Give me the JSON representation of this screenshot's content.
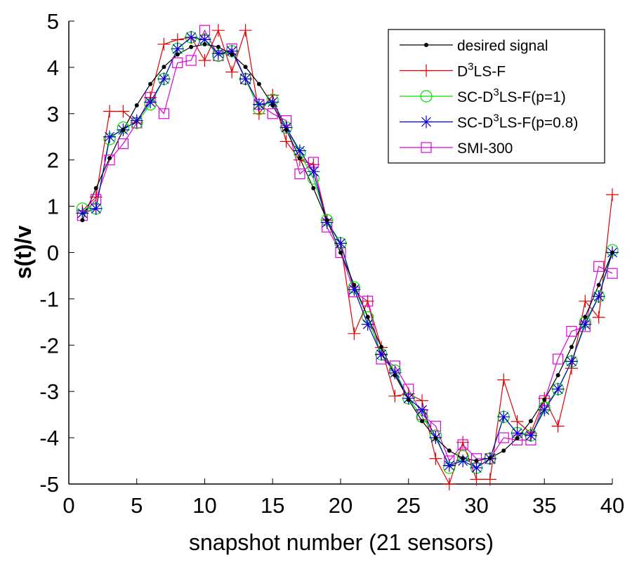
{
  "chart_data": {
    "type": "line",
    "title": "",
    "xlabel": "snapshot number (21 sensors)",
    "ylabel": "s(t)/v",
    "xlim": [
      0,
      40
    ],
    "ylim": [
      -5,
      5
    ],
    "xticks": [
      0,
      5,
      10,
      15,
      20,
      25,
      30,
      35,
      40
    ],
    "yticks": [
      -5,
      -4,
      -3,
      -2,
      -1,
      0,
      1,
      2,
      3,
      4,
      5
    ],
    "grid": false,
    "legend_position": "top-right",
    "x": [
      1,
      2,
      3,
      4,
      5,
      6,
      7,
      8,
      9,
      10,
      11,
      12,
      13,
      14,
      15,
      16,
      17,
      18,
      19,
      20,
      21,
      22,
      23,
      24,
      25,
      26,
      27,
      28,
      29,
      30,
      31,
      32,
      33,
      34,
      35,
      36,
      37,
      38,
      39,
      40
    ],
    "series": [
      {
        "name": "desired signal",
        "legend_main": "desired signal",
        "legend_sup": "",
        "legend_tail": "",
        "color": "#000000",
        "marker": "dot",
        "values": [
          0.7,
          1.39,
          2.04,
          2.65,
          3.18,
          3.64,
          4.01,
          4.28,
          4.44,
          4.5,
          4.44,
          4.28,
          4.01,
          3.64,
          3.18,
          2.65,
          2.04,
          1.39,
          0.7,
          0.0,
          -0.7,
          -1.39,
          -2.04,
          -2.65,
          -3.18,
          -3.64,
          -4.01,
          -4.28,
          -4.44,
          -4.5,
          -4.44,
          -4.28,
          -4.01,
          -3.64,
          -3.18,
          -2.65,
          -2.04,
          -1.39,
          -0.7,
          0.0
        ]
      },
      {
        "name": "D3LS-F",
        "legend_main": "D",
        "legend_sup": "3",
        "legend_tail": "LS-F",
        "color": "#e00000",
        "marker": "plus",
        "values": [
          0.9,
          1.2,
          3.05,
          3.05,
          2.8,
          3.35,
          4.5,
          4.6,
          4.65,
          4.15,
          4.8,
          3.9,
          4.8,
          3.0,
          3.4,
          2.4,
          2.0,
          1.9,
          0.7,
          0.2,
          -1.75,
          -1.05,
          -2.05,
          -3.1,
          -3.05,
          -3.2,
          -4.45,
          -5.0,
          -4.1,
          -4.9,
          -4.9,
          -2.75,
          -3.65,
          -3.9,
          -3.15,
          -3.75,
          -2.5,
          -1.05,
          -1.4,
          1.25
        ]
      },
      {
        "name": "SC-D3LS-F(p=1)",
        "legend_main": "SC-D",
        "legend_sup": "3",
        "legend_tail": "LS-F(p=1)",
        "color": "#00dd00",
        "marker": "circle",
        "values": [
          0.95,
          0.95,
          2.45,
          2.7,
          2.8,
          3.2,
          3.75,
          4.4,
          4.65,
          4.6,
          4.25,
          4.35,
          3.75,
          3.1,
          3.3,
          2.7,
          2.15,
          1.6,
          0.7,
          0.2,
          -0.75,
          -1.4,
          -2.2,
          -2.55,
          -3.15,
          -3.55,
          -3.95,
          -4.65,
          -4.4,
          -4.65,
          -4.45,
          -3.55,
          -3.9,
          -3.95,
          -3.35,
          -2.95,
          -2.35,
          -1.5,
          -0.95,
          0.05
        ]
      },
      {
        "name": "SC-D3LS-F(p=0.8)",
        "legend_main": "SC-D",
        "legend_sup": "3",
        "legend_tail": "LS-F(p=0.8)",
        "color": "#0000cc",
        "marker": "asterisk",
        "values": [
          0.85,
          0.95,
          2.5,
          2.65,
          2.85,
          3.25,
          3.75,
          4.4,
          4.65,
          4.6,
          4.3,
          4.35,
          3.75,
          3.2,
          3.25,
          2.7,
          2.2,
          1.75,
          0.65,
          0.2,
          -0.8,
          -1.55,
          -2.2,
          -2.6,
          -3.15,
          -3.4,
          -4.0,
          -4.6,
          -4.5,
          -4.65,
          -4.45,
          -3.55,
          -3.9,
          -3.95,
          -3.4,
          -2.95,
          -2.35,
          -1.55,
          -0.95,
          0.0
        ]
      },
      {
        "name": "SMI-300",
        "legend_main": "SMI-300",
        "legend_sup": "",
        "legend_tail": "",
        "color": "#dd00dd",
        "marker": "square",
        "values": [
          0.8,
          1.15,
          2.0,
          2.35,
          2.8,
          3.35,
          3.0,
          4.1,
          4.15,
          4.8,
          4.25,
          4.4,
          3.75,
          3.2,
          3.0,
          2.85,
          1.7,
          1.95,
          0.55,
          0.0,
          -0.85,
          -1.05,
          -2.3,
          -2.45,
          -2.95,
          -3.5,
          -3.75,
          -4.5,
          -4.15,
          -4.45,
          -4.45,
          -4.0,
          -4.05,
          -4.05,
          -3.2,
          -2.3,
          -1.7,
          -1.6,
          -0.3,
          -0.45
        ]
      }
    ]
  }
}
